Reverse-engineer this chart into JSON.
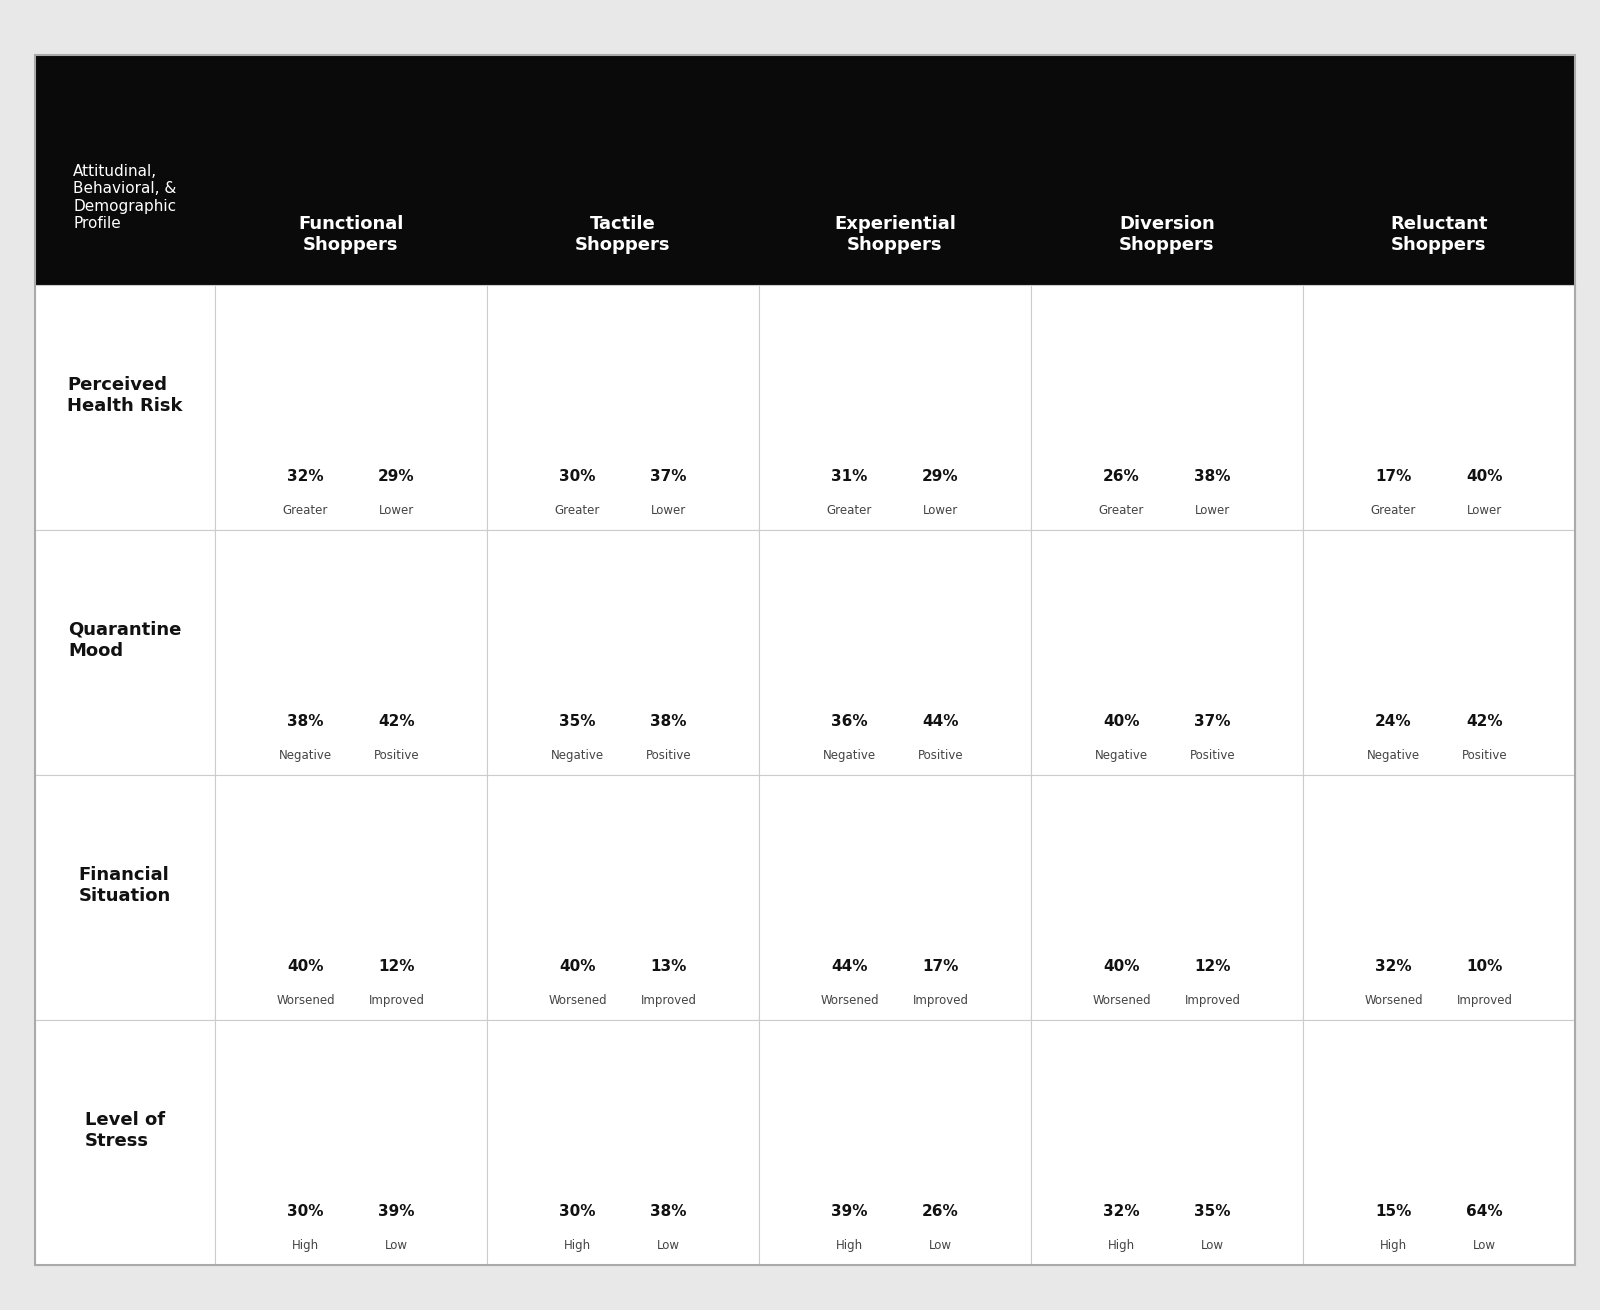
{
  "background_color": "#e8e8e8",
  "header_bg": "#0a0a0a",
  "cell_bg": "#ffffff",
  "col_header_labels": [
    "Functional\nShoppers",
    "Tactile\nShoppers",
    "Experiential\nShoppers",
    "Diversion\nShoppers",
    "Reluctant\nShoppers"
  ],
  "row_labels": [
    "Perceived\nHealth Risk",
    "Quarantine\nMood",
    "Financial\nSituation",
    "Level of\nStress"
  ],
  "row_sublabels": [
    [
      "Greater",
      "Lower"
    ],
    [
      "Negative",
      "Positive"
    ],
    [
      "Worsened",
      "Improved"
    ],
    [
      "High",
      "Low"
    ]
  ],
  "values": [
    [
      [
        32,
        29
      ],
      [
        30,
        37
      ],
      [
        31,
        29
      ],
      [
        26,
        38
      ],
      [
        17,
        40
      ]
    ],
    [
      [
        38,
        42
      ],
      [
        35,
        38
      ],
      [
        36,
        44
      ],
      [
        40,
        37
      ],
      [
        24,
        42
      ]
    ],
    [
      [
        40,
        12
      ],
      [
        40,
        13
      ],
      [
        44,
        17
      ],
      [
        40,
        12
      ],
      [
        32,
        10
      ]
    ],
    [
      [
        30,
        39
      ],
      [
        30,
        38
      ],
      [
        39,
        26
      ],
      [
        32,
        35
      ],
      [
        15,
        64
      ]
    ]
  ],
  "highlight_colors": [
    [
      "cyan",
      "dark",
      "dark",
      "dark",
      "gold"
    ],
    [
      "dark",
      "dark",
      "dark",
      "cyan",
      "gold"
    ],
    [
      "dark",
      "dark",
      "dark",
      "dark",
      "gold"
    ],
    [
      "dark",
      "dark",
      "cyan",
      "dark",
      "gold"
    ]
  ],
  "color_cyan": "#5bc8e8",
  "color_gold": "#e8a000",
  "color_dark": "#4a4a4a",
  "top_label": "Attitudinal,\nBehavioral, &\nDemographic\nProfile"
}
